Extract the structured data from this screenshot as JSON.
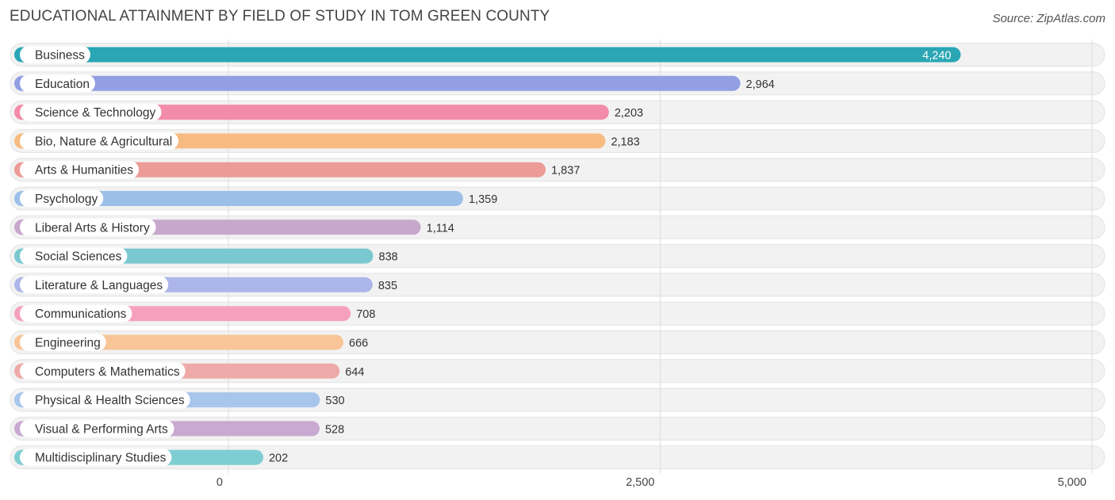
{
  "header": {
    "title": "EDUCATIONAL ATTAINMENT BY FIELD OF STUDY IN TOM GREEN COUNTY",
    "source": "Source: ZipAtlas.com"
  },
  "chart_data": {
    "type": "bar",
    "orientation": "horizontal",
    "title": "EDUCATIONAL ATTAINMENT BY FIELD OF STUDY IN TOM GREEN COUNTY",
    "xlabel": "",
    "ylabel": "",
    "xlim": [
      0,
      5000
    ],
    "x_ticks": [
      0,
      2500,
      5000
    ],
    "x_tick_labels": [
      "0",
      "2,500",
      "5,000"
    ],
    "grid": true,
    "categories": [
      "Business",
      "Education",
      "Science & Technology",
      "Bio, Nature & Agricultural",
      "Arts & Humanities",
      "Psychology",
      "Liberal Arts & History",
      "Social Sciences",
      "Literature & Languages",
      "Communications",
      "Engineering",
      "Computers & Mathematics",
      "Physical & Health Sciences",
      "Visual & Performing Arts",
      "Multidisciplinary Studies"
    ],
    "values": [
      4240,
      2964,
      2203,
      2183,
      1837,
      1359,
      1114,
      838,
      835,
      708,
      666,
      644,
      530,
      528,
      202
    ],
    "value_labels": [
      "4,240",
      "2,964",
      "2,203",
      "2,183",
      "1,837",
      "1,359",
      "1,114",
      "838",
      "835",
      "708",
      "666",
      "644",
      "530",
      "528",
      "202"
    ],
    "colors": [
      "#2aa6b4",
      "#939fe3",
      "#f38bab",
      "#f7bb82",
      "#ec9b97",
      "#9cbfe8",
      "#c8a7cd",
      "#7ac8d0",
      "#adb6ea",
      "#f5a1bd",
      "#f8c598",
      "#eeaaa8",
      "#a8c6ec",
      "#c9a9d0",
      "#7ecdd2"
    ]
  }
}
